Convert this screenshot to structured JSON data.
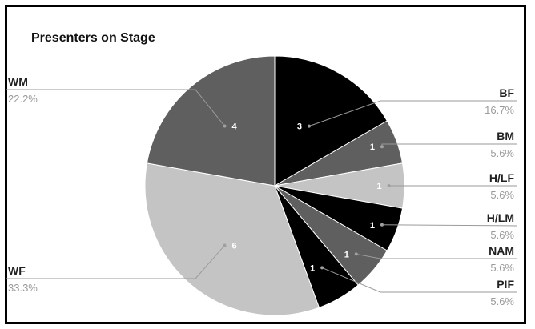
{
  "chart_data": {
    "type": "pie",
    "title": "Presenters on Stage",
    "slices": [
      {
        "label": "BF",
        "value": 3,
        "percent": "16.7%",
        "color": "#000000"
      },
      {
        "label": "BM",
        "value": 1,
        "percent": "5.6%",
        "color": "#5f5f5f"
      },
      {
        "label": "H/LF",
        "value": 1,
        "percent": "5.6%",
        "color": "#c4c4c4"
      },
      {
        "label": "H/LM",
        "value": 1,
        "percent": "5.6%",
        "color": "#000000"
      },
      {
        "label": "NAM",
        "value": 1,
        "percent": "5.6%",
        "color": "#5f5f5f"
      },
      {
        "label": "PIF",
        "value": 1,
        "percent": "5.6%",
        "color": "#000000"
      },
      {
        "label": "WF",
        "value": 6,
        "percent": "33.3%",
        "color": "#c4c4c4"
      },
      {
        "label": "WM",
        "value": 4,
        "percent": "22.2%",
        "color": "#5f5f5f"
      }
    ],
    "legend": "outside-labels"
  }
}
